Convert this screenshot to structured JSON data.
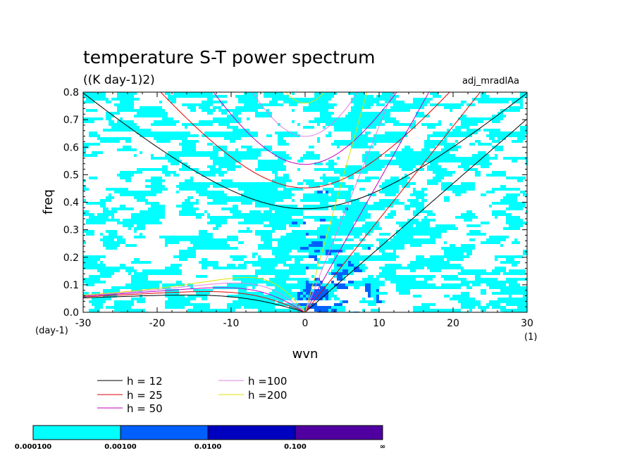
{
  "chart_data": {
    "type": "heatmap",
    "title": "temperature S-T power spectrum",
    "subtitle": "((K day-1)2)",
    "tag": "adj_mradlAa",
    "xlabel": "wvn",
    "ylabel": "freq",
    "x_unit": "(1)",
    "y_unit": "(day-1)",
    "xlim": [
      -30,
      30
    ],
    "ylim": [
      0,
      0.8
    ],
    "xticks": [
      "-30",
      "-20",
      "-10",
      "0",
      "10",
      "20",
      "30"
    ],
    "yticks": [
      "0.0",
      "0.1",
      "0.2",
      "0.3",
      "0.4",
      "0.5",
      "0.6",
      "0.7",
      "0.8"
    ],
    "dispersion_curves": [
      {
        "name": "h = 12",
        "h": 12,
        "color": "#000000"
      },
      {
        "name": "h = 25",
        "h": 25,
        "color": "#e00000"
      },
      {
        "name": "h = 50",
        "h": 50,
        "color": "#c000c0"
      },
      {
        "name": "h =100",
        "h": 100,
        "color": "#e080e0"
      },
      {
        "name": "h =200",
        "h": 200,
        "color": "#e0e000"
      }
    ],
    "contour_levels": {
      "labels": [
        "0.000100",
        "0.00100",
        "0.0100",
        "0.100",
        "∞"
      ],
      "colors": [
        "#00ffff",
        "#0060ff",
        "#0000c0",
        "#5000a0"
      ]
    }
  }
}
